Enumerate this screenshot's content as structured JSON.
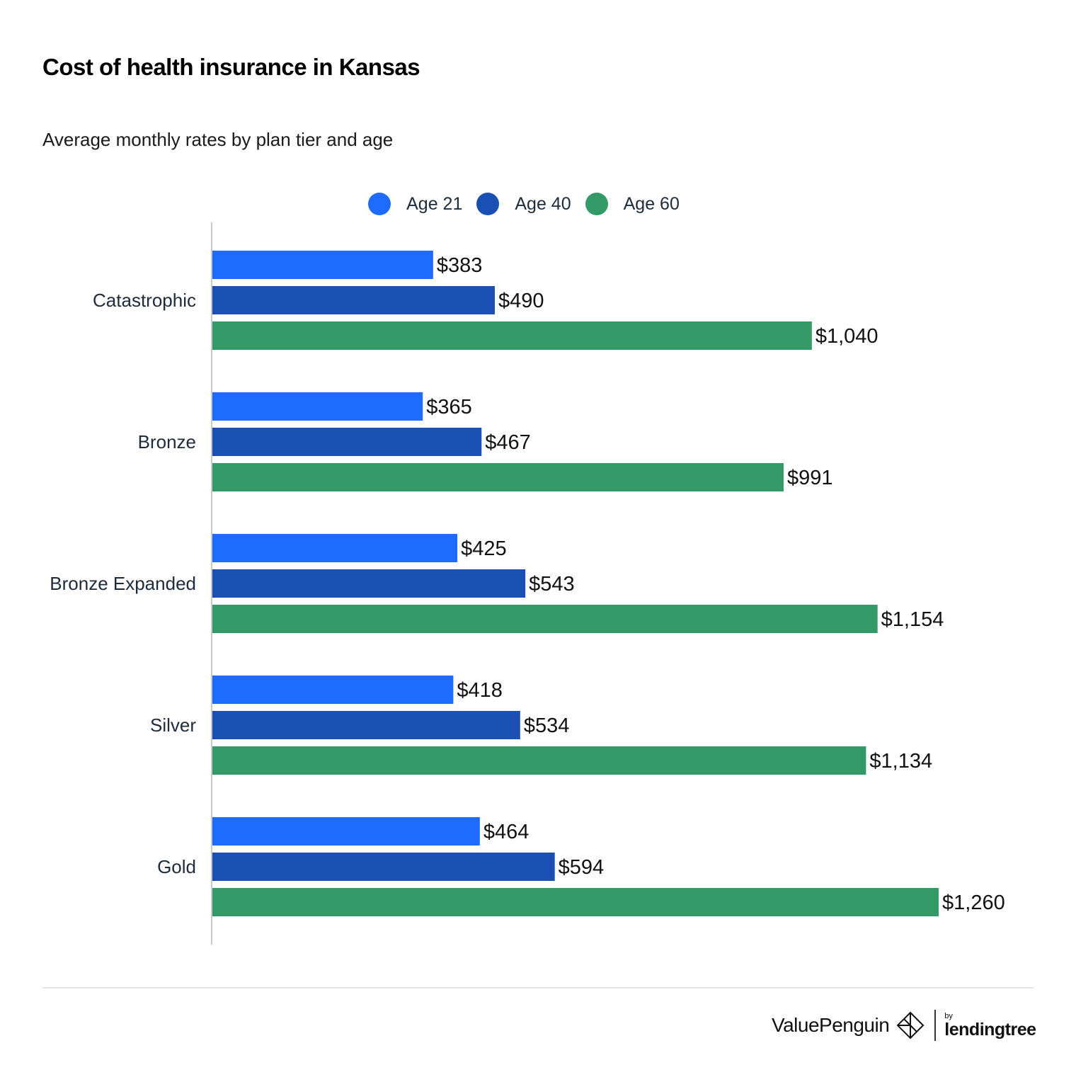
{
  "colors": {
    "age21": "#1f6bff",
    "age40": "#1a4fb3",
    "age60": "#339966",
    "axis": "#c9c9c9",
    "category_text": "#1d2b3a",
    "value_text": "#111111"
  },
  "chart_data": {
    "type": "bar",
    "orientation": "horizontal",
    "title": "Cost of health insurance in Kansas",
    "subtitle": "Average monthly rates by plan tier and age",
    "categories": [
      "Catastrophic",
      "Bronze",
      "Bronze Expanded",
      "Silver",
      "Gold"
    ],
    "series": [
      {
        "name": "Age 21",
        "color": "#1f6bff",
        "values": [
          383,
          365,
          425,
          418,
          464
        ],
        "labels": [
          "$383",
          "$365",
          "$425",
          "$418",
          "$464"
        ]
      },
      {
        "name": "Age 40",
        "color": "#1a4fb3",
        "values": [
          490,
          467,
          543,
          534,
          594
        ],
        "labels": [
          "$490",
          "$467",
          "$543",
          "$534",
          "$594"
        ]
      },
      {
        "name": "Age 60",
        "color": "#339966",
        "values": [
          1040,
          991,
          1154,
          1134,
          1260
        ],
        "labels": [
          "$1,040",
          "$991",
          "$1,154",
          "$1,134",
          "$1,260"
        ]
      }
    ],
    "xlim": [
      0,
      1260
    ],
    "grid": false,
    "legend": "top-center"
  },
  "footer": {
    "brand_name": "ValuePenguin",
    "by_label": "by",
    "partner_name": "lendingtree"
  }
}
